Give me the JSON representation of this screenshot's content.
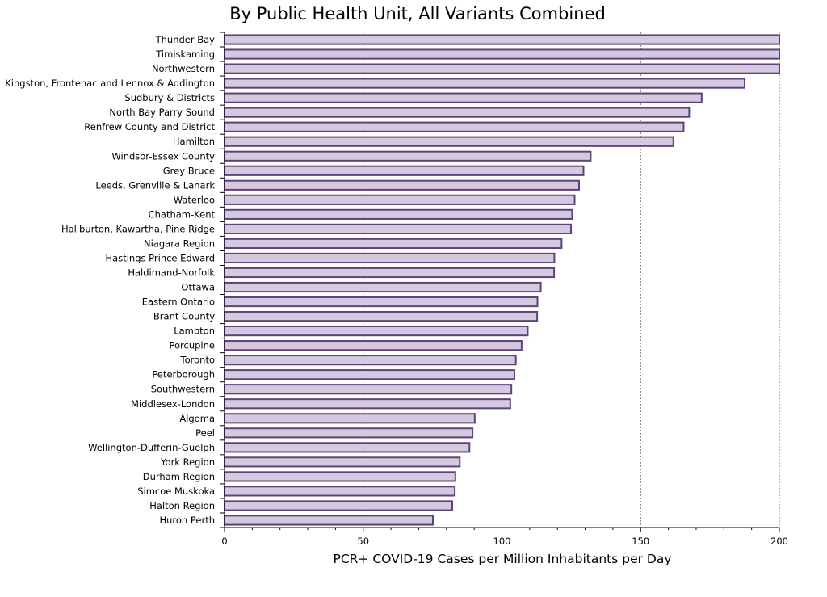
{
  "chart_data": {
    "type": "bar",
    "orientation": "horizontal",
    "title": "By Public Health Unit, All Variants Combined",
    "xlabel": "PCR+ COVID-19 Cases per Million Inhabitants per Day",
    "ylabel": "",
    "xlim": [
      0,
      200
    ],
    "xticks": [
      0,
      50,
      100,
      150,
      200
    ],
    "grid": "vertical dashed at major ticks",
    "categories": [
      "Thunder Bay",
      "Timiskaming",
      "Northwestern",
      "Kingston, Frontenac and Lennox & Addington",
      "Sudbury & Districts",
      "North Bay Parry Sound",
      "Renfrew County and District",
      "Hamilton",
      "Windsor-Essex County",
      "Grey Bruce",
      "Leeds, Grenville & Lanark",
      "Waterloo",
      "Chatham-Kent",
      "Haliburton, Kawartha, Pine Ridge",
      "Niagara Region",
      "Hastings Prince Edward",
      "Haldimand-Norfolk",
      "Ottawa",
      "Eastern Ontario",
      "Brant County",
      "Lambton",
      "Porcupine",
      "Toronto",
      "Peterborough",
      "Southwestern",
      "Middlesex-London",
      "Algoma",
      "Peel",
      "Wellington-Dufferin-Guelph",
      "York Region",
      "Durham Region",
      "Simcoe Muskoka",
      "Halton Region",
      "Huron Perth"
    ],
    "values": [
      200,
      200,
      200,
      187.5,
      172,
      167.5,
      165.5,
      161.8,
      132,
      129.4,
      127.8,
      126.2,
      125.3,
      124.9,
      121.5,
      118.9,
      118.8,
      114,
      112.8,
      112.7,
      109.3,
      107.1,
      105,
      104.5,
      103.4,
      103,
      90.2,
      89.4,
      88.3,
      84.8,
      83.2,
      83,
      82.1,
      75.1
    ],
    "colors": {
      "bar_fill": "#d4c9e1",
      "bar_stroke": "#5e4378",
      "grid": "#555555",
      "axis": "#000000"
    }
  }
}
